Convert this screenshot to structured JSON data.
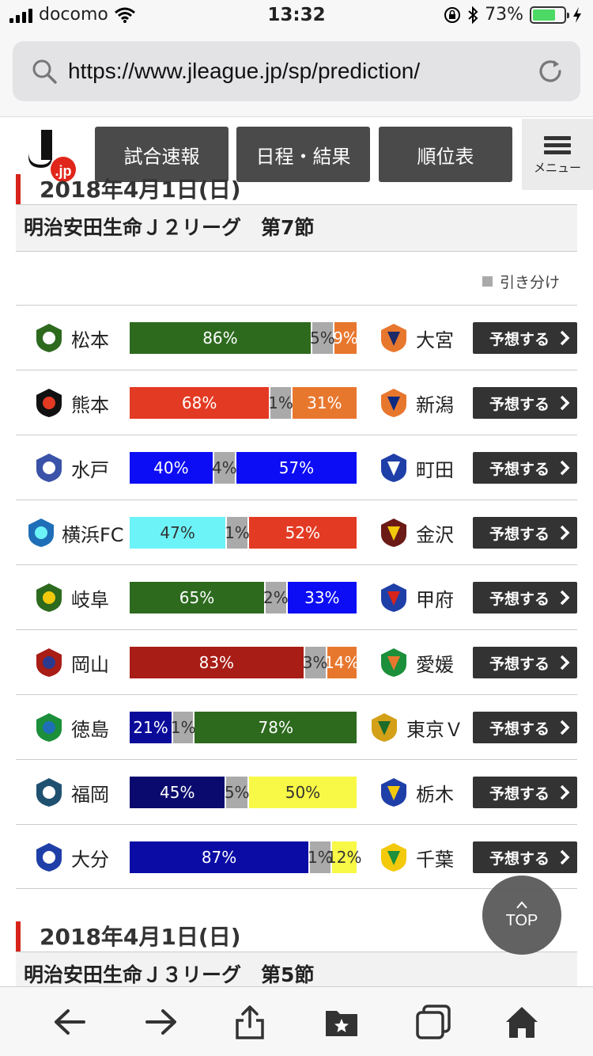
{
  "status_bar": {
    "carrier": "docomo",
    "time": "13:32",
    "battery": "73%",
    "battery_level": 0.73
  },
  "browser": {
    "url": "https://www.jleague.jp/sp/prediction/"
  },
  "header": {
    "logo_text": ".jp",
    "nav": [
      "試合速報",
      "日程・結果",
      "順位表"
    ],
    "menu_label": "メニュー"
  },
  "sections": [
    {
      "date": "2018年4月1日(日)",
      "league": "明治安田生命Ｊ２リーグ　第7節",
      "legend": "引き分け",
      "matches": [
        {
          "home": "松本",
          "away": "大宮",
          "home_pct": "86%",
          "draw_pct": "5%",
          "away_pct": "9%",
          "home_val": 86,
          "draw_val": 5,
          "away_val": 9,
          "home_color": "#2d6a1e",
          "away_color": "#e8772e",
          "button": "予想する"
        },
        {
          "home": "熊本",
          "away": "新潟",
          "home_pct": "68%",
          "draw_pct": "1%",
          "away_pct": "31%",
          "home_val": 68,
          "draw_val": 1,
          "away_val": 31,
          "home_color": "#e33a23",
          "away_color": "#e8772e",
          "button": "予想する"
        },
        {
          "home": "水戸",
          "away": "町田",
          "home_pct": "40%",
          "draw_pct": "4%",
          "away_pct": "57%",
          "home_val": 40,
          "draw_val": 4,
          "away_val": 57,
          "home_color": "#0c0cf5",
          "away_color": "#0c0cf5",
          "button": "予想する"
        },
        {
          "home": "横浜FC",
          "away": "金沢",
          "home_pct": "47%",
          "draw_pct": "1%",
          "away_pct": "52%",
          "home_val": 47,
          "draw_val": 1,
          "away_val": 52,
          "home_color": "#6cf3f8",
          "away_color": "#e33a23",
          "button": "予想する"
        },
        {
          "home": "岐阜",
          "away": "甲府",
          "home_pct": "65%",
          "draw_pct": "2%",
          "away_pct": "33%",
          "home_val": 65,
          "draw_val": 2,
          "away_val": 33,
          "home_color": "#2d6a1e",
          "away_color": "#0c0cf5",
          "button": "予想する"
        },
        {
          "home": "岡山",
          "away": "愛媛",
          "home_pct": "83%",
          "draw_pct": "3%",
          "away_pct": "14%",
          "home_val": 83,
          "draw_val": 3,
          "away_val": 14,
          "home_color": "#a81d16",
          "away_color": "#e8772e",
          "button": "予想する"
        },
        {
          "home": "徳島",
          "away": "東京Ｖ",
          "home_pct": "21%",
          "draw_pct": "1%",
          "away_pct": "78%",
          "home_val": 21,
          "draw_val": 1,
          "away_val": 78,
          "home_color": "#0b0b9a",
          "away_color": "#2d6a1e",
          "button": "予想する"
        },
        {
          "home": "福岡",
          "away": "栃木",
          "home_pct": "45%",
          "draw_pct": "5%",
          "away_pct": "50%",
          "home_val": 45,
          "draw_val": 5,
          "away_val": 50,
          "home_color": "#0a0a6e",
          "away_color": "#f8f846",
          "button": "予想する"
        },
        {
          "home": "大分",
          "away": "千葉",
          "home_pct": "87%",
          "draw_pct": "1%",
          "away_pct": "12%",
          "home_val": 87,
          "draw_val": 1,
          "away_val": 12,
          "home_color": "#0b0ba6",
          "away_color": "#f8f846",
          "button": "予想する"
        }
      ]
    },
    {
      "date": "2018年4月1日(日)",
      "league": "明治安田生命Ｊ３リーグ　第5節"
    }
  ],
  "top_button": "TOP",
  "toolbar_icons": [
    "back-arrow-icon",
    "forward-arrow-icon",
    "share-icon",
    "bookmarks-icon",
    "tabs-icon",
    "home-icon"
  ]
}
